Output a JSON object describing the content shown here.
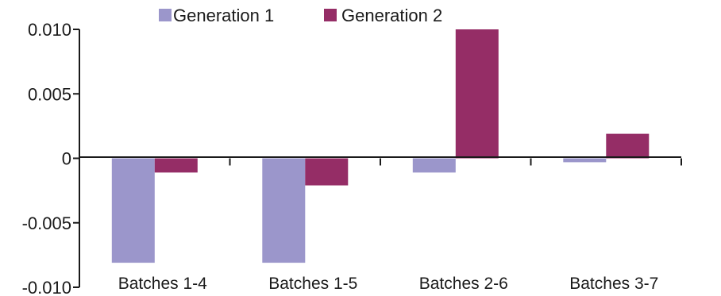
{
  "chart_data": {
    "type": "bar",
    "categories": [
      "Batches 1-4",
      "Batches 1-5",
      "Batches 2-6",
      "Batches 3-7"
    ],
    "series": [
      {
        "name": "Generation 1",
        "color": "#9b96cb",
        "values": [
          -0.0081,
          -0.0081,
          -0.0011,
          -0.0003
        ]
      },
      {
        "name": "Generation 2",
        "color": "#952d66",
        "values": [
          -0.0011,
          -0.0021,
          0.01,
          0.0019
        ]
      }
    ],
    "yticks": [
      "0.010",
      "0.005",
      "0",
      "-0.005",
      "-0.010"
    ],
    "ytick_values": [
      0.01,
      0.005,
      0,
      -0.005,
      -0.01
    ],
    "ylim": [
      -0.01,
      0.01
    ],
    "grid": false,
    "legend_position": "top-center"
  }
}
